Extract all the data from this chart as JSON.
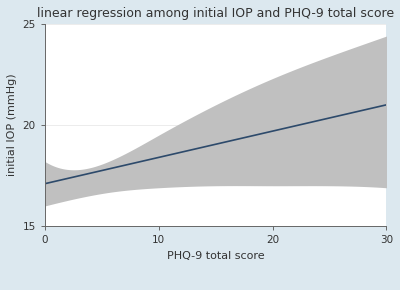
{
  "title": "linear regression among initial IOP and PHQ-9 total score",
  "xlabel": "PHQ-9 total score",
  "ylabel": "initial IOP (mmHg)",
  "xlim": [
    0,
    30
  ],
  "ylim": [
    15,
    25
  ],
  "yticks": [
    15,
    20,
    25
  ],
  "xticks": [
    0,
    10,
    20,
    30
  ],
  "fit_x": [
    0,
    30
  ],
  "fit_y": [
    17.1,
    21.0
  ],
  "ci_upper_x": [
    0,
    3,
    6,
    10,
    15,
    20,
    25,
    30
  ],
  "ci_upper_y": [
    18.2,
    17.8,
    18.3,
    19.5,
    21.0,
    22.3,
    23.4,
    24.4
  ],
  "ci_lower_x": [
    0,
    3,
    6,
    10,
    15,
    20,
    25,
    30
  ],
  "ci_lower_y": [
    16.0,
    16.4,
    16.7,
    16.9,
    17.0,
    17.0,
    17.0,
    16.9
  ],
  "ci_color": "#c0c0c0",
  "fit_color": "#2d4a6b",
  "background_color": "#dce8ef",
  "plot_bg_color": "#ffffff",
  "title_fontsize": 9.0,
  "axis_label_fontsize": 8.0,
  "tick_fontsize": 7.5,
  "legend_fontsize": 7.5
}
